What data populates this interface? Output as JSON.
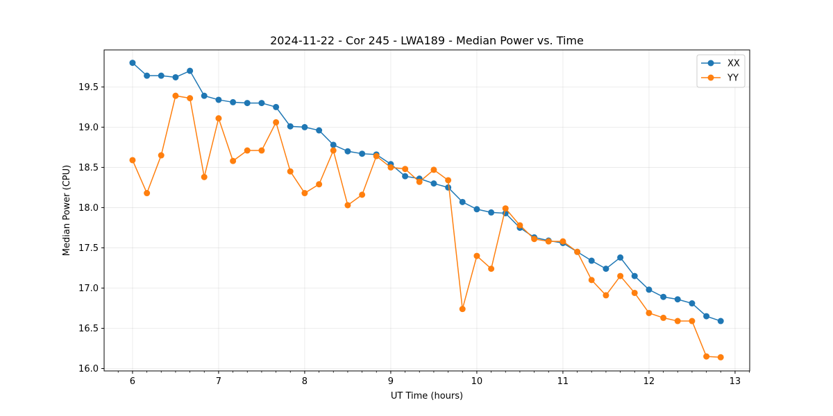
{
  "chart_data": {
    "type": "line",
    "title": "2024-11-22 - Cor 245 - LWA189 - Median Power vs. Time",
    "xlabel": "UT Time (hours)",
    "ylabel": "Median Power (CPU)",
    "xlim": [
      5.67,
      13.17
    ],
    "ylim": [
      15.97,
      19.96
    ],
    "xticks": [
      6,
      7,
      8,
      9,
      10,
      11,
      12,
      13
    ],
    "yticks": [
      16.0,
      16.5,
      17.0,
      17.5,
      18.0,
      18.5,
      19.0,
      19.5
    ],
    "ytick_labels": [
      "16.0",
      "16.5",
      "17.0",
      "17.5",
      "18.0",
      "18.5",
      "19.0",
      "19.5"
    ],
    "grid": true,
    "legend_position": "top-right",
    "x": [
      6.0,
      6.167,
      6.333,
      6.5,
      6.667,
      6.833,
      7.0,
      7.167,
      7.333,
      7.5,
      7.667,
      7.833,
      8.0,
      8.167,
      8.333,
      8.5,
      8.667,
      8.833,
      9.0,
      9.167,
      9.333,
      9.5,
      9.667,
      9.833,
      10.0,
      10.167,
      10.333,
      10.5,
      10.667,
      10.833,
      11.0,
      11.167,
      11.333,
      11.5,
      11.667,
      11.833,
      12.0,
      12.167,
      12.333,
      12.5,
      12.667,
      12.833
    ],
    "series": [
      {
        "name": "XX",
        "color": "#1f77b4",
        "values": [
          19.8,
          19.64,
          19.64,
          19.62,
          19.7,
          19.39,
          19.34,
          19.31,
          19.3,
          19.3,
          19.25,
          19.01,
          19.0,
          18.96,
          18.78,
          18.7,
          18.67,
          18.66,
          18.54,
          18.39,
          18.36,
          18.3,
          18.25,
          18.07,
          17.98,
          17.94,
          17.93,
          17.75,
          17.63,
          17.59,
          17.56,
          17.45,
          17.34,
          17.24,
          17.38,
          17.15,
          16.98,
          16.89,
          16.86,
          16.81,
          16.65,
          16.59
        ]
      },
      {
        "name": "YY",
        "color": "#ff7f0e",
        "values": [
          18.59,
          18.18,
          18.65,
          19.39,
          19.36,
          18.38,
          19.11,
          18.58,
          18.71,
          18.71,
          19.06,
          18.45,
          18.18,
          18.29,
          18.71,
          18.03,
          18.16,
          18.64,
          18.5,
          18.48,
          18.32,
          18.47,
          18.34,
          16.74,
          17.4,
          17.24,
          17.99,
          17.78,
          17.61,
          17.58,
          17.58,
          17.45,
          17.1,
          16.91,
          17.15,
          16.94,
          16.69,
          16.63,
          16.59,
          16.59,
          16.15,
          16.14
        ]
      }
    ]
  }
}
